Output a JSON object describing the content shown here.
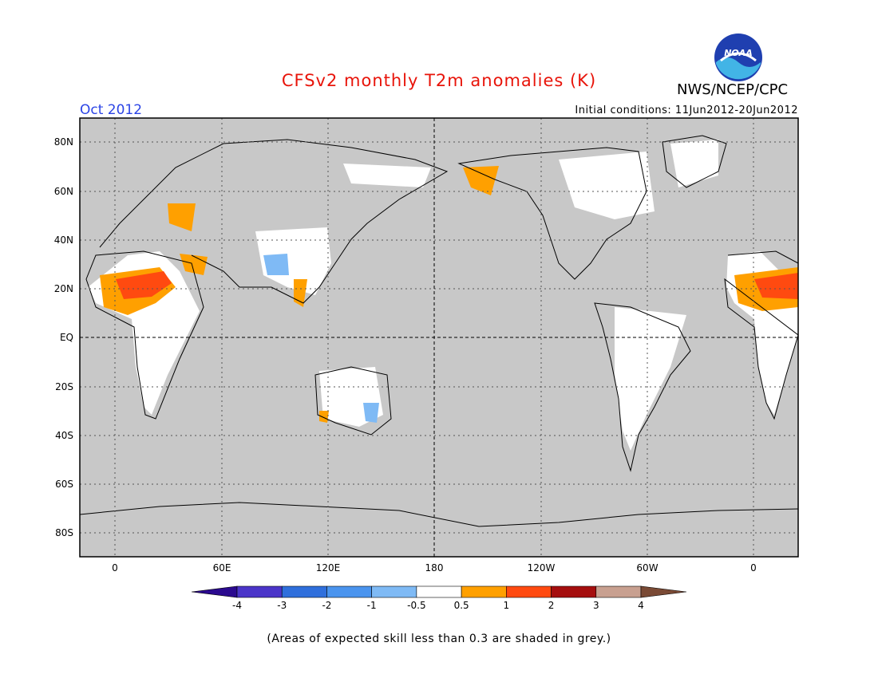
{
  "header": {
    "title": "CFSv2 monthly T2m anomalies (K)",
    "month": "Oct 2012",
    "agency": "NWS/NCEP/CPC",
    "logo_text": "NOAA",
    "initial_conditions": "Initial conditions: 11Jun2012-20Jun2012"
  },
  "colors": {
    "title": "#e8140a",
    "month": "#2b44e6",
    "ocean_grey": "#c8c8c8",
    "coast": "#000000",
    "land_skill": "#ffffff"
  },
  "map": {
    "lat_labels": [
      "80N",
      "60N",
      "40N",
      "20N",
      "EQ",
      "20S",
      "40S",
      "60S",
      "80S"
    ],
    "lon_labels": [
      "0",
      "60E",
      "120E",
      "180",
      "120W",
      "60W",
      "0"
    ]
  },
  "colorbar": {
    "colors": [
      "#2b0a8f",
      "#4b35c9",
      "#2f6fdc",
      "#4a94ee",
      "#7fbaf5",
      "#ffffff",
      "#ffa000",
      "#ff4a10",
      "#a50e0e",
      "#c8a090",
      "#7a4a35"
    ],
    "tick_labels": [
      "-4",
      "-3",
      "-2",
      "-1",
      "-0.5",
      "0.5",
      "1",
      "2",
      "3",
      "4"
    ]
  },
  "footnote": "(Areas of expected skill less than 0.3 are shaded in grey.)"
}
